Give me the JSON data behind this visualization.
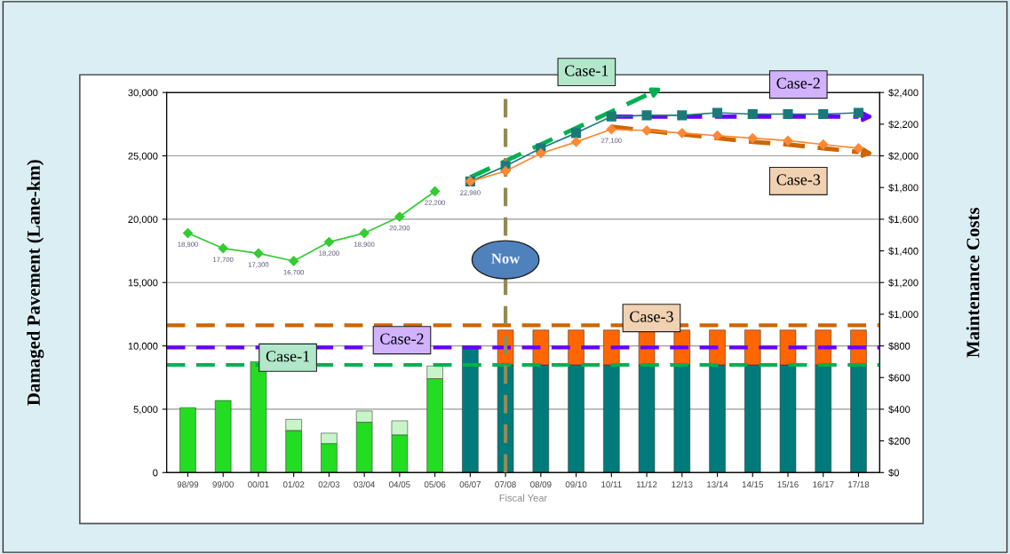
{
  "chart_data": {
    "type": "bar",
    "stacked": true,
    "xlabel": "Fiscal Year",
    "ylabel": "Damaged Pavement (Lane-km)",
    "y2label": "Maintenance Costs",
    "categories": [
      "98/99",
      "99/00",
      "00/01",
      "01/02",
      "02/03",
      "03/04",
      "04/05",
      "05/06",
      "06/07",
      "07/08",
      "08/09",
      "09/10",
      "10/11",
      "11/12",
      "12/13",
      "13/14",
      "14/15",
      "15/16",
      "16/17",
      "17/18"
    ],
    "series": [
      {
        "axis": "y2",
        "color": "#22dd22",
        "values": [
          410,
          455,
          700,
          266,
          183,
          318,
          238,
          593,
          null,
          null,
          null,
          null,
          null,
          null,
          null,
          null,
          null,
          null,
          null,
          null
        ]
      },
      {
        "axis": "y2",
        "color": "#c8f5c8",
        "values": [
          null,
          null,
          null,
          70,
          66,
          71,
          89,
          80,
          null,
          null,
          null,
          null,
          null,
          null,
          null,
          null,
          null,
          null,
          null,
          null
        ]
      },
      {
        "axis": "y2",
        "color": "#007b7b",
        "values": [
          null,
          null,
          null,
          null,
          null,
          null,
          null,
          null,
          800,
          680,
          680,
          680,
          680,
          680,
          680,
          680,
          680,
          680,
          680,
          680
        ]
      },
      {
        "axis": "y2",
        "color": "#ff6600",
        "values": [
          null,
          null,
          null,
          null,
          null,
          null,
          null,
          null,
          null,
          220,
          220,
          220,
          220,
          220,
          220,
          220,
          220,
          220,
          220,
          220
        ]
      },
      {
        "type": "line",
        "color": "#33cc33",
        "marker": "diamond",
        "values": [
          18900,
          17700,
          17300,
          16700,
          18200,
          18900,
          20200,
          22200,
          null,
          null,
          null,
          null,
          null,
          null,
          null,
          null,
          null,
          null,
          null,
          null
        ],
        "value_labels": [
          "18,900",
          "17,700",
          "17,300",
          "16,700",
          "18,200",
          "18,900",
          "20,200",
          "22,200",
          null,
          null,
          null,
          null,
          null,
          null,
          null,
          null,
          null,
          null,
          null,
          null
        ]
      },
      {
        "type": "line",
        "color": "#1a7a7a",
        "marker": "square",
        "values": [
          null,
          null,
          null,
          null,
          null,
          null,
          null,
          null,
          22980,
          24200,
          25600,
          26800,
          28100,
          28200,
          28200,
          28400,
          28300,
          28300,
          28300,
          28400
        ],
        "value_labels": [
          null,
          null,
          null,
          null,
          null,
          null,
          null,
          null,
          "22,980",
          null,
          null,
          null,
          null,
          null,
          null,
          null,
          null,
          null,
          null,
          null
        ]
      },
      {
        "type": "line",
        "color": "#ff8833",
        "marker": "diamond",
        "values": [
          null,
          null,
          null,
          null,
          null,
          null,
          null,
          null,
          22980,
          23800,
          25200,
          26100,
          27100,
          27000,
          26800,
          26600,
          26400,
          26200,
          25900,
          25600
        ],
        "value_labels": [
          null,
          null,
          null,
          null,
          null,
          null,
          null,
          null,
          null,
          null,
          null,
          null,
          "27,100",
          null,
          null,
          null,
          null,
          null,
          null,
          null
        ]
      },
      {
        "type": "line",
        "name": "Case-1",
        "color": "#00b050",
        "line_style": "dashed",
        "marker": "none",
        "values": [
          null,
          null,
          null,
          null,
          null,
          null,
          null,
          null,
          23300,
          24600,
          25900,
          27200,
          28500,
          29800,
          null,
          null,
          null,
          null,
          null,
          null
        ]
      },
      {
        "type": "line",
        "name": "Case-2",
        "color": "#6600ff",
        "line_style": "dashed",
        "marker": "none",
        "values": [
          null,
          null,
          null,
          null,
          null,
          null,
          null,
          null,
          null,
          null,
          null,
          null,
          28100,
          28100,
          28100,
          28100,
          28100,
          28100,
          28100,
          28100
        ]
      },
      {
        "type": "line",
        "name": "Case-3",
        "color": "#cc6600",
        "line_style": "dashed",
        "marker": "none",
        "values": [
          null,
          null,
          null,
          null,
          null,
          null,
          null,
          null,
          null,
          null,
          null,
          null,
          27300,
          27000,
          26700,
          26400,
          26100,
          25900,
          25600,
          25300
        ]
      }
    ],
    "ylim": [
      0,
      30000
    ],
    "yticks": [
      0,
      {
        "value": 5000,
        "label": "5,000"
      },
      {
        "value": 10000,
        "label": "10,000"
      },
      {
        "value": 15000,
        "label": "15,000"
      },
      {
        "value": 20000,
        "label": "20,000"
      },
      {
        "value": 25000,
        "label": "25,000"
      },
      {
        "value": 30000,
        "label": "30,000"
      }
    ],
    "y2lim": [
      0,
      2400
    ],
    "y2ticks": [
      {
        "value": 0,
        "label": "$0"
      },
      {
        "value": 200,
        "label": "$200"
      },
      {
        "value": 400,
        "label": "$400"
      },
      {
        "value": 600,
        "label": "$600"
      },
      {
        "value": 800,
        "label": "$800"
      },
      {
        "value": 1000,
        "label": "$1,000"
      },
      {
        "value": 1200,
        "label": "$1,200"
      },
      {
        "value": 1400,
        "label": "$1,400"
      },
      {
        "value": 1600,
        "label": "$1,600"
      },
      {
        "value": 1800,
        "label": "$1,800"
      },
      {
        "value": 2000,
        "label": "$2,000"
      },
      {
        "value": 2200,
        "label": "$2,200"
      },
      {
        "value": 2400,
        "label": "$2,400"
      }
    ],
    "grid": "y",
    "ref_lines": [
      {
        "axis": "y2",
        "value": 680,
        "label": "Case-1",
        "color": "#00b050",
        "line_style": "dashed"
      },
      {
        "axis": "y2",
        "value": 790,
        "label": "Case-2",
        "color": "#6600ff",
        "line_style": "dashed"
      },
      {
        "axis": "y2",
        "value": 930,
        "label": "Case-3",
        "color": "#cc6600",
        "line_style": "dashed"
      },
      {
        "axis": "x",
        "value": "07/08",
        "label": "Now",
        "color": "#948a54",
        "line_style": "dashed"
      }
    ]
  }
}
